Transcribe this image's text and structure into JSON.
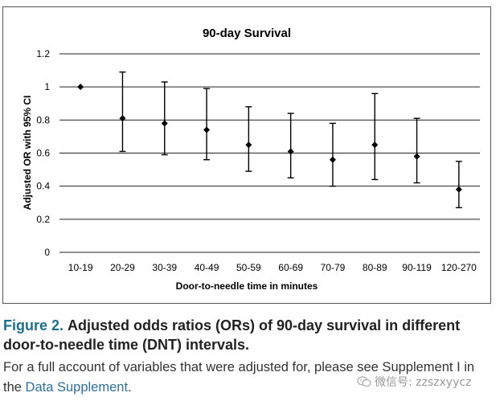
{
  "chart_data": {
    "type": "scatter",
    "title": "90-day Survival",
    "xlabel": "Door-to-needle time in minutes",
    "ylabel": "Adjusted OR with 95% CI",
    "ylim": [
      0,
      1.2
    ],
    "yticks": [
      "0",
      "0.2",
      "0.4",
      "0.6",
      "0.8",
      "1",
      "1.2"
    ],
    "ytick_values": [
      0,
      0.2,
      0.4,
      0.6,
      0.8,
      1.0,
      1.2
    ],
    "grid": "horizontal",
    "categories": [
      "10-19",
      "20-29",
      "30-39",
      "40-49",
      "50-59",
      "60-69",
      "70-79",
      "80-89",
      "90-119",
      "120-270"
    ],
    "values": [
      1.0,
      0.81,
      0.78,
      0.74,
      0.65,
      0.61,
      0.56,
      0.65,
      0.58,
      0.38
    ],
    "ci_lower": [
      null,
      0.61,
      0.59,
      0.56,
      0.49,
      0.45,
      0.4,
      0.44,
      0.42,
      0.27
    ],
    "ci_upper": [
      null,
      1.09,
      1.03,
      0.99,
      0.88,
      0.84,
      0.78,
      0.96,
      0.81,
      0.55
    ]
  },
  "caption": {
    "figure_number": "Figure 2.",
    "figure_title": "Adjusted odds ratios (ORs) of 90-day survival in different door-to-needle time (DNT) intervals.",
    "body_text": "For a full account of variables that were adjusted for, please see Supplement I in the ",
    "link_text": "Data Supplement",
    "body_end": "."
  },
  "watermark": {
    "text": "微信号: zzszxyycz",
    "icon": "wechat-icon"
  },
  "colors": {
    "marker": "#000000",
    "gridline": "#222222",
    "figure_accent": "#1f6f8b",
    "link": "#2f6f9b"
  }
}
